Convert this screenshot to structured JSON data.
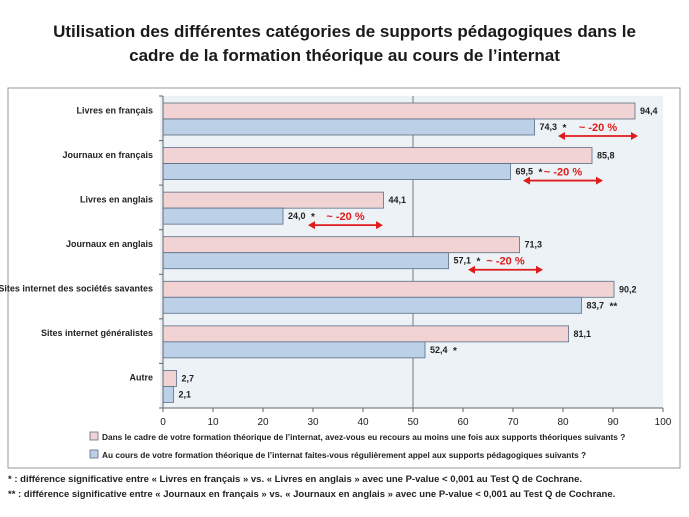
{
  "title_line1": "Utilisation des différentes catégories de supports pédagogiques dans le",
  "title_line2": "cadre de la formation théorique au cours de l’internat",
  "colors": {
    "series1": "#f2d3d3",
    "series2": "#bcd0e7",
    "bar_border": "#5a6d86",
    "plot_bg": "#ecf2f6",
    "arrow": "#e01b1b",
    "reference_line": "#7a7a7a"
  },
  "chart_data": {
    "type": "bar",
    "orientation": "horizontal",
    "title": "Utilisation des différentes catégories de supports pédagogiques dans le cadre de la formation théorique au cours de l’internat",
    "categories": [
      "Livres en français",
      "Journaux en français",
      "Livres en anglais",
      "Journaux en anglais",
      "Sites internet des sociétés savantes",
      "Sites internet généralistes",
      "Autre"
    ],
    "series": [
      {
        "name": "Dans le cadre de votre formation théorique de l’internat, avez-vous eu recours au moins une fois aux supports théoriques suivants ?",
        "values": [
          94.4,
          85.8,
          44.1,
          71.3,
          90.2,
          81.1,
          2.7
        ],
        "labels": [
          "94,4",
          "85,8",
          "44,1",
          "71,3",
          "90,2",
          "81,1",
          "2,7"
        ]
      },
      {
        "name": "Au cours de votre formation théorique de l’internat faites-vous régulièrement appel aux supports pédagogiques suivants ?",
        "values": [
          74.3,
          69.5,
          24.0,
          57.1,
          83.7,
          52.4,
          2.1
        ],
        "labels": [
          "74,3",
          "69,5",
          "24,0",
          "57,1",
          "83,7",
          "52,4",
          "2,1"
        ],
        "markers": [
          "*",
          "*",
          "*",
          "*",
          "**",
          "*",
          ""
        ]
      }
    ],
    "xlim": [
      0,
      100
    ],
    "xticks": [
      0,
      10,
      20,
      30,
      40,
      50,
      60,
      70,
      80,
      90,
      100
    ],
    "reference_line": 50,
    "legend_position": "bottom",
    "annotations": [
      {
        "text": "~ -20 %",
        "category": "Livres en français",
        "from": 79,
        "to": 95
      },
      {
        "text": "~ -20 %",
        "category": "Journaux en français",
        "from": 72,
        "to": 88
      },
      {
        "text": "~ -20 %",
        "category": "Livres en anglais",
        "from": 29,
        "to": 44
      },
      {
        "text": "~ -20 %",
        "category": "Journaux en anglais",
        "from": 61,
        "to": 76
      }
    ]
  },
  "footnotes": [
    "* : différence significative entre « Livres en français » vs. « Livres en anglais » avec une P-value < 0,001 au Test Q de Cochrane.",
    "** : différence significative entre « Journaux en français » vs. « Journaux en anglais » avec une P-value < 0,001 au Test Q de Cochrane."
  ]
}
